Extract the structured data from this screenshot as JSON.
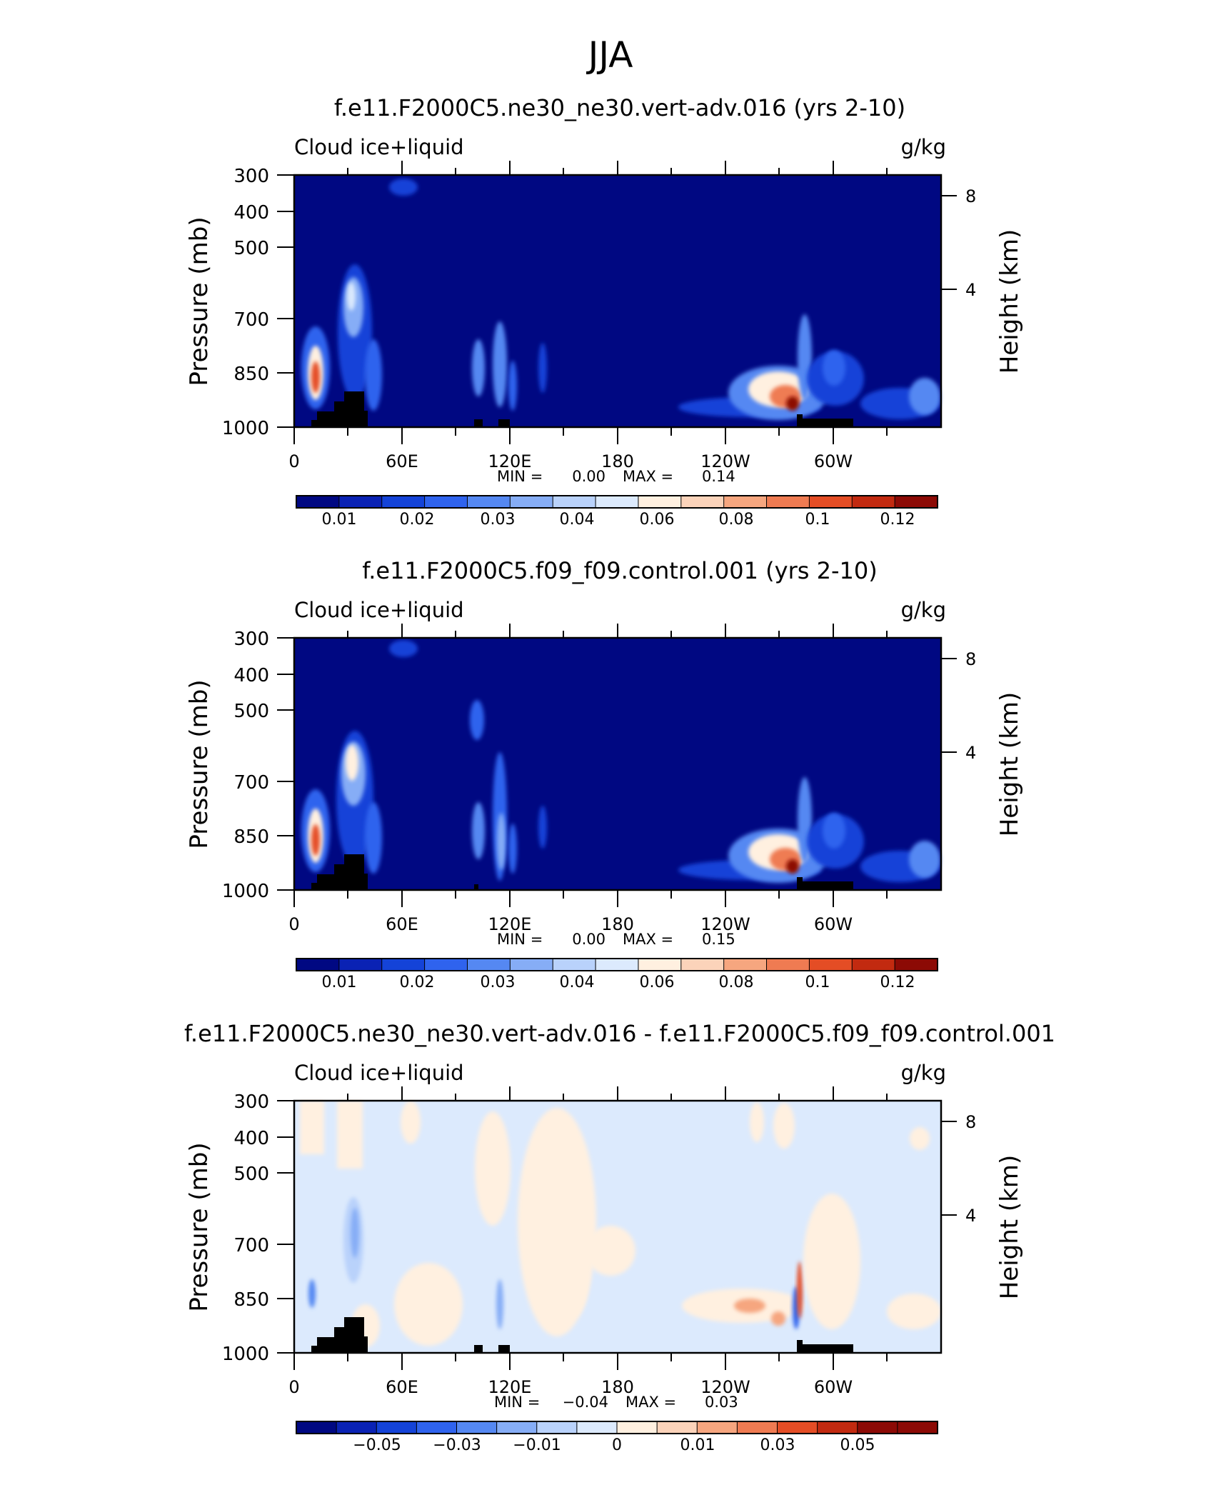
{
  "figure_title": "JJA",
  "colors": {
    "cmap": [
      "#000882",
      "#0a22b4",
      "#1443d8",
      "#2f63ee",
      "#5588f2",
      "#86adf6",
      "#b9d2fb",
      "#dceafd",
      "#fff0e0",
      "#fbd3ba",
      "#f6a67f",
      "#ef7b52",
      "#e44d25",
      "#c22a10",
      "#8c0a05"
    ],
    "land": "#000000"
  },
  "chart_data": [
    {
      "type": "heatmap",
      "title": "f.e11.F2000C5.ne30_ne30.vert-adv.016 (yrs 2-10)",
      "left_label": "Cloud ice+liquid",
      "right_label": "g/kg",
      "ylabel": "Pressure (mb)",
      "ylabel_right": "Height (km)",
      "y_ticks": [
        "300",
        "400",
        "500",
        "700",
        "850",
        "1000"
      ],
      "y_ticks_right": [
        "8",
        "4"
      ],
      "x_ticks": [
        "0",
        "60E",
        "120E",
        "180",
        "120W",
        "60W"
      ],
      "min_label": "MIN =",
      "min_value": "0.00",
      "max_label": "MAX =",
      "max_value": "0.14",
      "colorbar_labels": [
        "0.01",
        "0.02",
        "0.03",
        "0.04",
        "0.06",
        "0.08",
        "0.1",
        "0.12"
      ]
    },
    {
      "type": "heatmap",
      "title": "f.e11.F2000C5.f09_f09.control.001 (yrs 2-10)",
      "left_label": "Cloud ice+liquid",
      "right_label": "g/kg",
      "ylabel": "Pressure (mb)",
      "ylabel_right": "Height (km)",
      "y_ticks": [
        "300",
        "400",
        "500",
        "700",
        "850",
        "1000"
      ],
      "y_ticks_right": [
        "8",
        "4"
      ],
      "x_ticks": [
        "0",
        "60E",
        "120E",
        "180",
        "120W",
        "60W"
      ],
      "min_label": "MIN =",
      "min_value": "0.00",
      "max_label": "MAX =",
      "max_value": "0.15",
      "colorbar_labels": [
        "0.01",
        "0.02",
        "0.03",
        "0.04",
        "0.06",
        "0.08",
        "0.1",
        "0.12"
      ]
    },
    {
      "type": "heatmap",
      "title": "f.e11.F2000C5.ne30_ne30.vert-adv.016 - f.e11.F2000C5.f09_f09.control.001",
      "left_label": "Cloud ice+liquid",
      "right_label": "g/kg",
      "ylabel": "Pressure (mb)",
      "ylabel_right": "Height (km)",
      "y_ticks": [
        "300",
        "400",
        "500",
        "700",
        "850",
        "1000"
      ],
      "y_ticks_right": [
        "8",
        "4"
      ],
      "x_ticks": [
        "0",
        "60E",
        "120E",
        "180",
        "120W",
        "60W"
      ],
      "min_label": "MIN =",
      "min_value": "−0.04",
      "max_label": "MAX =",
      "max_value": "0.03",
      "colorbar_labels": [
        "−0.05",
        "−0.03",
        "−0.01",
        "0",
        "0.01",
        "0.03",
        "0.05"
      ]
    }
  ]
}
